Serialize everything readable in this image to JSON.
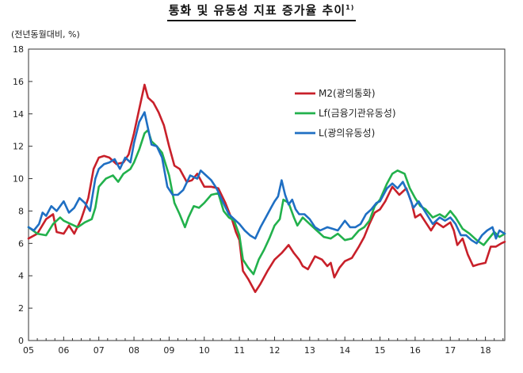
{
  "chart_data": {
    "type": "line",
    "title": "통화 및 유동성 지표 증가율 추이",
    "title_note": "1)",
    "ylabel": "(전년동월대비, %)",
    "xlabel": "",
    "ylim": [
      0,
      18
    ],
    "yticks": [
      "0",
      "2",
      "4",
      "6",
      "8",
      "10",
      "12",
      "14",
      "16",
      "18"
    ],
    "xlim": [
      2005.0,
      2018.55
    ],
    "xticks": [
      {
        "x": 2005.0,
        "label": "05"
      },
      {
        "x": 2006.0,
        "label": "06"
      },
      {
        "x": 2007.0,
        "label": "07"
      },
      {
        "x": 2008.0,
        "label": "08"
      },
      {
        "x": 2009.0,
        "label": "09"
      },
      {
        "x": 2010.0,
        "label": "10"
      },
      {
        "x": 2011.0,
        "label": "11"
      },
      {
        "x": 2012.0,
        "label": "12"
      },
      {
        "x": 2013.0,
        "label": "13"
      },
      {
        "x": 2014.0,
        "label": "14"
      },
      {
        "x": 2015.0,
        "label": "15"
      },
      {
        "x": 2016.0,
        "label": "16"
      },
      {
        "x": 2017.0,
        "label": "17"
      },
      {
        "x": 2018.0,
        "label": "18"
      }
    ],
    "grid": false,
    "legend_position": "top-right",
    "series": [
      {
        "name": "M2(광의통화)",
        "color": "#c8202a",
        "points": [
          [
            2005.0,
            6.3
          ],
          [
            2005.25,
            6.6
          ],
          [
            2005.5,
            7.5
          ],
          [
            2005.7,
            7.8
          ],
          [
            2005.8,
            6.7
          ],
          [
            2006.0,
            6.6
          ],
          [
            2006.15,
            7.1
          ],
          [
            2006.3,
            6.6
          ],
          [
            2006.5,
            7.5
          ],
          [
            2006.7,
            8.8
          ],
          [
            2006.85,
            10.6
          ],
          [
            2007.0,
            11.3
          ],
          [
            2007.15,
            11.4
          ],
          [
            2007.3,
            11.3
          ],
          [
            2007.5,
            10.9
          ],
          [
            2007.7,
            11.0
          ],
          [
            2007.85,
            11.5
          ],
          [
            2008.0,
            12.8
          ],
          [
            2008.15,
            14.3
          ],
          [
            2008.3,
            15.8
          ],
          [
            2008.4,
            15.0
          ],
          [
            2008.55,
            14.7
          ],
          [
            2008.7,
            14.1
          ],
          [
            2008.85,
            13.3
          ],
          [
            2009.0,
            12.0
          ],
          [
            2009.15,
            10.8
          ],
          [
            2009.3,
            10.6
          ],
          [
            2009.5,
            9.8
          ],
          [
            2009.65,
            9.9
          ],
          [
            2009.8,
            10.3
          ],
          [
            2010.0,
            9.5
          ],
          [
            2010.2,
            9.5
          ],
          [
            2010.4,
            9.4
          ],
          [
            2010.6,
            8.5
          ],
          [
            2010.8,
            7.4
          ],
          [
            2010.9,
            6.7
          ],
          [
            2011.0,
            6.2
          ],
          [
            2011.1,
            4.3
          ],
          [
            2011.25,
            3.8
          ],
          [
            2011.45,
            3.0
          ],
          [
            2011.6,
            3.5
          ],
          [
            2011.8,
            4.3
          ],
          [
            2012.0,
            5.0
          ],
          [
            2012.2,
            5.4
          ],
          [
            2012.4,
            5.9
          ],
          [
            2012.55,
            5.4
          ],
          [
            2012.7,
            5.0
          ],
          [
            2012.8,
            4.6
          ],
          [
            2012.95,
            4.4
          ],
          [
            2013.15,
            5.2
          ],
          [
            2013.35,
            5.0
          ],
          [
            2013.5,
            4.6
          ],
          [
            2013.6,
            4.8
          ],
          [
            2013.7,
            3.9
          ],
          [
            2013.85,
            4.5
          ],
          [
            2014.0,
            4.9
          ],
          [
            2014.2,
            5.1
          ],
          [
            2014.4,
            5.8
          ],
          [
            2014.55,
            6.4
          ],
          [
            2014.7,
            7.2
          ],
          [
            2014.85,
            7.9
          ],
          [
            2015.0,
            8.1
          ],
          [
            2015.15,
            8.6
          ],
          [
            2015.35,
            9.5
          ],
          [
            2015.55,
            9.0
          ],
          [
            2015.75,
            9.4
          ],
          [
            2015.9,
            8.5
          ],
          [
            2016.0,
            7.6
          ],
          [
            2016.15,
            7.8
          ],
          [
            2016.3,
            7.3
          ],
          [
            2016.45,
            6.8
          ],
          [
            2016.6,
            7.3
          ],
          [
            2016.8,
            7.0
          ],
          [
            2017.0,
            7.3
          ],
          [
            2017.1,
            6.8
          ],
          [
            2017.2,
            5.9
          ],
          [
            2017.35,
            6.3
          ],
          [
            2017.5,
            5.3
          ],
          [
            2017.65,
            4.6
          ],
          [
            2017.8,
            4.7
          ],
          [
            2018.0,
            4.8
          ],
          [
            2018.15,
            5.8
          ],
          [
            2018.3,
            5.8
          ],
          [
            2018.45,
            6.0
          ],
          [
            2018.55,
            6.1
          ]
        ]
      },
      {
        "name": "Lf(금융기관유동성)",
        "color": "#22b14c",
        "points": [
          [
            2005.0,
            7.0
          ],
          [
            2005.25,
            6.6
          ],
          [
            2005.5,
            6.5
          ],
          [
            2005.7,
            7.2
          ],
          [
            2005.9,
            7.6
          ],
          [
            2006.0,
            7.4
          ],
          [
            2006.2,
            7.2
          ],
          [
            2006.4,
            7.0
          ],
          [
            2006.6,
            7.3
          ],
          [
            2006.8,
            7.5
          ],
          [
            2006.9,
            8.2
          ],
          [
            2007.0,
            9.5
          ],
          [
            2007.2,
            10.0
          ],
          [
            2007.4,
            10.2
          ],
          [
            2007.55,
            9.8
          ],
          [
            2007.7,
            10.3
          ],
          [
            2007.9,
            10.6
          ],
          [
            2008.0,
            11.0
          ],
          [
            2008.15,
            11.8
          ],
          [
            2008.3,
            12.8
          ],
          [
            2008.4,
            13.0
          ],
          [
            2008.5,
            12.3
          ],
          [
            2008.65,
            12.0
          ],
          [
            2008.8,
            11.6
          ],
          [
            2009.0,
            10.2
          ],
          [
            2009.15,
            8.5
          ],
          [
            2009.3,
            7.8
          ],
          [
            2009.45,
            7.0
          ],
          [
            2009.55,
            7.6
          ],
          [
            2009.7,
            8.3
          ],
          [
            2009.85,
            8.2
          ],
          [
            2010.0,
            8.5
          ],
          [
            2010.2,
            9.0
          ],
          [
            2010.4,
            9.1
          ],
          [
            2010.55,
            8.0
          ],
          [
            2010.7,
            7.6
          ],
          [
            2010.85,
            7.4
          ],
          [
            2011.0,
            6.5
          ],
          [
            2011.1,
            5.0
          ],
          [
            2011.25,
            4.5
          ],
          [
            2011.4,
            4.1
          ],
          [
            2011.55,
            5.0
          ],
          [
            2011.7,
            5.6
          ],
          [
            2011.85,
            6.3
          ],
          [
            2012.0,
            7.1
          ],
          [
            2012.15,
            7.5
          ],
          [
            2012.25,
            8.7
          ],
          [
            2012.4,
            8.5
          ],
          [
            2012.55,
            7.6
          ],
          [
            2012.65,
            7.1
          ],
          [
            2012.8,
            7.6
          ],
          [
            2013.0,
            7.2
          ],
          [
            2013.2,
            6.8
          ],
          [
            2013.4,
            6.4
          ],
          [
            2013.6,
            6.3
          ],
          [
            2013.8,
            6.6
          ],
          [
            2014.0,
            6.2
          ],
          [
            2014.2,
            6.3
          ],
          [
            2014.4,
            6.8
          ],
          [
            2014.55,
            7.0
          ],
          [
            2014.7,
            7.4
          ],
          [
            2014.85,
            8.3
          ],
          [
            2015.0,
            8.7
          ],
          [
            2015.2,
            9.7
          ],
          [
            2015.35,
            10.3
          ],
          [
            2015.5,
            10.5
          ],
          [
            2015.7,
            10.3
          ],
          [
            2015.85,
            9.4
          ],
          [
            2016.0,
            8.8
          ],
          [
            2016.15,
            8.3
          ],
          [
            2016.3,
            8.1
          ],
          [
            2016.5,
            7.6
          ],
          [
            2016.7,
            7.8
          ],
          [
            2016.85,
            7.6
          ],
          [
            2017.0,
            8.0
          ],
          [
            2017.15,
            7.6
          ],
          [
            2017.35,
            6.9
          ],
          [
            2017.55,
            6.6
          ],
          [
            2017.75,
            6.2
          ],
          [
            2017.95,
            5.9
          ],
          [
            2018.1,
            6.3
          ],
          [
            2018.25,
            6.7
          ],
          [
            2018.4,
            6.4
          ],
          [
            2018.55,
            6.6
          ]
        ]
      },
      {
        "name": "L(광의유동성)",
        "color": "#1f6fc3",
        "points": [
          [
            2005.0,
            7.0
          ],
          [
            2005.15,
            6.8
          ],
          [
            2005.3,
            7.2
          ],
          [
            2005.4,
            7.9
          ],
          [
            2005.5,
            7.7
          ],
          [
            2005.65,
            8.3
          ],
          [
            2005.8,
            8.0
          ],
          [
            2006.0,
            8.6
          ],
          [
            2006.15,
            7.9
          ],
          [
            2006.3,
            8.2
          ],
          [
            2006.45,
            8.8
          ],
          [
            2006.6,
            8.5
          ],
          [
            2006.75,
            8.0
          ],
          [
            2006.9,
            10.0
          ],
          [
            2007.0,
            10.6
          ],
          [
            2007.15,
            10.9
          ],
          [
            2007.3,
            11.0
          ],
          [
            2007.45,
            11.2
          ],
          [
            2007.6,
            10.6
          ],
          [
            2007.75,
            11.3
          ],
          [
            2007.9,
            11.0
          ],
          [
            2008.0,
            12.2
          ],
          [
            2008.15,
            13.5
          ],
          [
            2008.3,
            14.1
          ],
          [
            2008.4,
            13.1
          ],
          [
            2008.5,
            12.1
          ],
          [
            2008.65,
            12.0
          ],
          [
            2008.8,
            11.3
          ],
          [
            2008.95,
            9.5
          ],
          [
            2009.1,
            9.0
          ],
          [
            2009.25,
            9.0
          ],
          [
            2009.4,
            9.3
          ],
          [
            2009.6,
            10.2
          ],
          [
            2009.8,
            10.0
          ],
          [
            2009.9,
            10.5
          ],
          [
            2010.05,
            10.2
          ],
          [
            2010.2,
            9.9
          ],
          [
            2010.35,
            9.4
          ],
          [
            2010.5,
            8.7
          ],
          [
            2010.7,
            7.8
          ],
          [
            2010.85,
            7.5
          ],
          [
            2011.0,
            7.2
          ],
          [
            2011.15,
            6.8
          ],
          [
            2011.3,
            6.5
          ],
          [
            2011.45,
            6.3
          ],
          [
            2011.6,
            7.0
          ],
          [
            2011.75,
            7.6
          ],
          [
            2011.9,
            8.2
          ],
          [
            2012.0,
            8.6
          ],
          [
            2012.1,
            8.9
          ],
          [
            2012.2,
            9.9
          ],
          [
            2012.3,
            9.0
          ],
          [
            2012.4,
            8.4
          ],
          [
            2012.5,
            8.7
          ],
          [
            2012.6,
            8.1
          ],
          [
            2012.7,
            7.8
          ],
          [
            2012.85,
            7.8
          ],
          [
            2013.0,
            7.5
          ],
          [
            2013.15,
            7.0
          ],
          [
            2013.3,
            6.8
          ],
          [
            2013.5,
            7.0
          ],
          [
            2013.65,
            6.9
          ],
          [
            2013.8,
            6.8
          ],
          [
            2014.0,
            7.4
          ],
          [
            2014.15,
            7.0
          ],
          [
            2014.3,
            7.0
          ],
          [
            2014.45,
            7.2
          ],
          [
            2014.6,
            7.8
          ],
          [
            2014.75,
            8.1
          ],
          [
            2014.9,
            8.5
          ],
          [
            2015.0,
            8.6
          ],
          [
            2015.2,
            9.4
          ],
          [
            2015.35,
            9.7
          ],
          [
            2015.5,
            9.4
          ],
          [
            2015.65,
            9.8
          ],
          [
            2015.8,
            9.1
          ],
          [
            2015.95,
            8.2
          ],
          [
            2016.1,
            8.6
          ],
          [
            2016.3,
            7.9
          ],
          [
            2016.5,
            7.2
          ],
          [
            2016.7,
            7.6
          ],
          [
            2016.85,
            7.4
          ],
          [
            2017.0,
            7.6
          ],
          [
            2017.15,
            7.2
          ],
          [
            2017.3,
            6.5
          ],
          [
            2017.45,
            6.5
          ],
          [
            2017.6,
            6.2
          ],
          [
            2017.75,
            6.0
          ],
          [
            2017.9,
            6.5
          ],
          [
            2018.05,
            6.8
          ],
          [
            2018.2,
            7.0
          ],
          [
            2018.3,
            6.3
          ],
          [
            2018.4,
            6.8
          ],
          [
            2018.55,
            6.6
          ]
        ]
      }
    ]
  }
}
